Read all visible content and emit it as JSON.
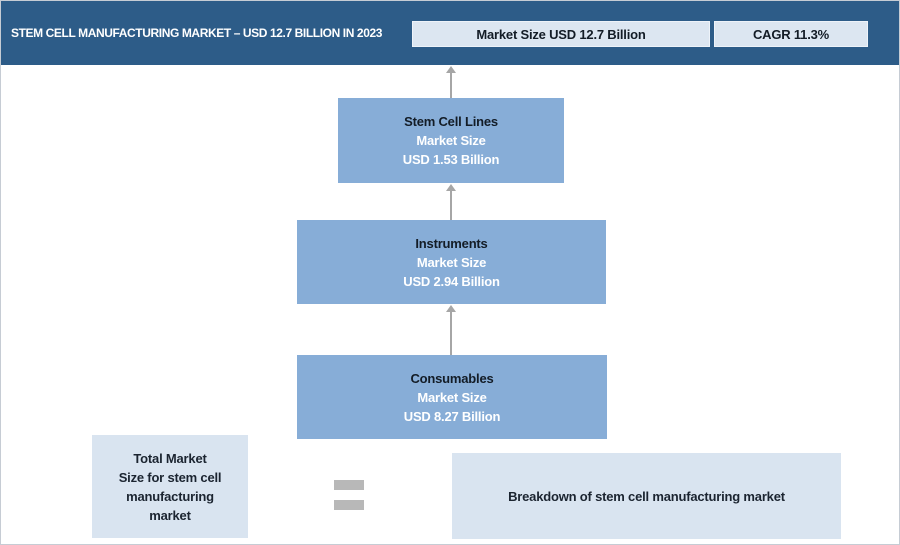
{
  "header": {
    "title": "STEM CELL MANUFACTURING MARKET – USD 12.7 BILLION IN 2023",
    "market_size_badge": "Market Size USD 12.7 Billion",
    "cagr_badge": "CAGR 11.3%"
  },
  "flow": {
    "boxes": [
      {
        "name": "Stem Cell Lines",
        "subtitle": "Market Size",
        "value": "USD 1.53 Billion"
      },
      {
        "name": "Instruments",
        "subtitle": "Market Size",
        "value": "USD 2.94 Billion"
      },
      {
        "name": "Consumables",
        "subtitle": "Market Size",
        "value": "USD 8.27 Billion"
      }
    ]
  },
  "legend": {
    "left_lines": [
      "Total Market",
      "Size for stem cell",
      "manufacturing",
      "market"
    ],
    "right_text": "Breakdown of stem cell manufacturing market"
  },
  "chart_data": {
    "type": "table",
    "title": "Stem Cell Manufacturing Market – USD 12.7 Billion in 2023",
    "year": 2023,
    "total_market_size_usd_billion": 12.7,
    "cagr_percent": 11.3,
    "categories": [
      "Stem Cell Lines",
      "Instruments",
      "Consumables"
    ],
    "values_usd_billion": [
      1.53,
      2.94,
      8.27
    ],
    "value_labels": [
      "USD 1.53 Billion",
      "USD 2.94 Billion",
      "USD 8.27 Billion"
    ]
  },
  "colors": {
    "header_bg": "#2d5c88",
    "badge_bg": "#dce6f1",
    "flow_box_bg": "#87add7",
    "legend_box_bg": "#d9e4f0",
    "arrow": "#a6a6a6",
    "equals": "#b8b8b8",
    "dark_text": "#131c26",
    "light_text": "#ffffff"
  }
}
